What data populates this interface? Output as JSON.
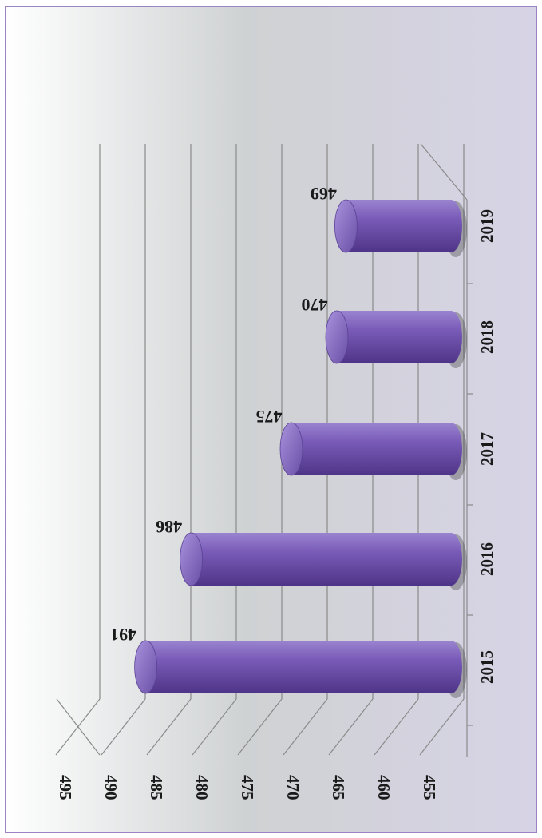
{
  "chart_data": {
    "type": "bar",
    "orientation": "horizontal-3d-cylinder",
    "rotation": "rotated 90 degrees clockwise",
    "categories": [
      "2015",
      "2016",
      "2017",
      "2018",
      "2019"
    ],
    "values": [
      491,
      486,
      475,
      470,
      469
    ],
    "data_labels": [
      "491",
      "486",
      "475",
      "470",
      "469"
    ],
    "value_axis": {
      "min": 455,
      "max": 495,
      "step": 5,
      "ticks": [
        "455",
        "460",
        "465",
        "470",
        "475",
        "480",
        "485",
        "490",
        "495"
      ]
    },
    "gridlines": true,
    "legend": "none",
    "title": "",
    "xlabel": "",
    "ylabel": ""
  },
  "colors": {
    "bar_fill": "#7356ad",
    "bar_cap": "#8e77c6",
    "gridline": "#8a8a8a",
    "frame_border": "#9a84c4"
  }
}
